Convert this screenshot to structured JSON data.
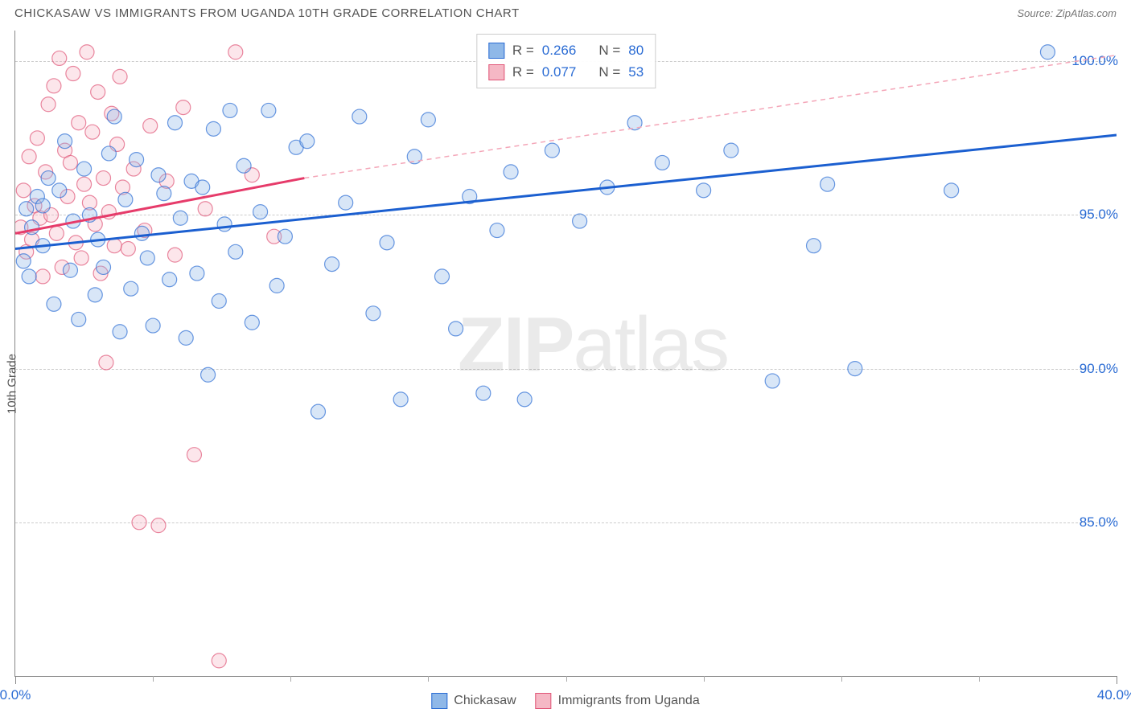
{
  "header": {
    "title": "CHICKASAW VS IMMIGRANTS FROM UGANDA 10TH GRADE CORRELATION CHART",
    "source_prefix": "Source: ",
    "source_name": "ZipAtlas.com"
  },
  "watermark": {
    "zip": "ZIP",
    "atlas": "atlas"
  },
  "axes": {
    "y_title": "10th Grade",
    "x_range": [
      0,
      40
    ],
    "y_range": [
      80,
      101
    ],
    "x_ticks_major": [
      0,
      40
    ],
    "x_ticks_minor": [
      5,
      10,
      15,
      20,
      25,
      30,
      35
    ],
    "x_labels": [
      {
        "v": 0,
        "t": "0.0%"
      },
      {
        "v": 40,
        "t": "40.0%"
      }
    ],
    "y_grid": [
      85,
      90,
      95,
      100
    ],
    "y_labels": [
      {
        "v": 85,
        "t": "85.0%"
      },
      {
        "v": 90,
        "t": "90.0%"
      },
      {
        "v": 95,
        "t": "95.0%"
      },
      {
        "v": 100,
        "t": "100.0%"
      }
    ],
    "grid_color": "#cccccc",
    "axis_color": "#888888"
  },
  "series": {
    "a": {
      "name": "Chickasaw",
      "fill": "#8fb8e8",
      "stroke": "#2b6cd4",
      "r_label": "R =",
      "r_value": "0.266",
      "n_label": "N =",
      "n_value": "80",
      "marker_radius": 9,
      "trend": {
        "x1": 0,
        "y1": 93.9,
        "x2": 40,
        "y2": 97.6,
        "width": 3,
        "color": "#1b5fd0"
      },
      "extrap": null,
      "points": [
        [
          0.3,
          93.5
        ],
        [
          0.4,
          95.2
        ],
        [
          0.5,
          93.0
        ],
        [
          0.6,
          94.6
        ],
        [
          0.8,
          95.6
        ],
        [
          1.0,
          94.0
        ],
        [
          1.0,
          95.3
        ],
        [
          1.2,
          96.2
        ],
        [
          1.4,
          92.1
        ],
        [
          1.6,
          95.8
        ],
        [
          1.8,
          97.4
        ],
        [
          2.0,
          93.2
        ],
        [
          2.1,
          94.8
        ],
        [
          2.3,
          91.6
        ],
        [
          2.5,
          96.5
        ],
        [
          2.7,
          95.0
        ],
        [
          2.9,
          92.4
        ],
        [
          3.0,
          94.2
        ],
        [
          3.2,
          93.3
        ],
        [
          3.4,
          97.0
        ],
        [
          3.6,
          98.2
        ],
        [
          3.8,
          91.2
        ],
        [
          4.0,
          95.5
        ],
        [
          4.2,
          92.6
        ],
        [
          4.4,
          96.8
        ],
        [
          4.6,
          94.4
        ],
        [
          4.8,
          93.6
        ],
        [
          5.0,
          91.4
        ],
        [
          5.2,
          96.3
        ],
        [
          5.4,
          95.7
        ],
        [
          5.6,
          92.9
        ],
        [
          5.8,
          98.0
        ],
        [
          6.0,
          94.9
        ],
        [
          6.2,
          91.0
        ],
        [
          6.4,
          96.1
        ],
        [
          6.6,
          93.1
        ],
        [
          6.8,
          95.9
        ],
        [
          7.0,
          89.8
        ],
        [
          7.2,
          97.8
        ],
        [
          7.4,
          92.2
        ],
        [
          7.6,
          94.7
        ],
        [
          7.8,
          98.4
        ],
        [
          8.0,
          93.8
        ],
        [
          8.3,
          96.6
        ],
        [
          8.6,
          91.5
        ],
        [
          8.9,
          95.1
        ],
        [
          9.2,
          98.4
        ],
        [
          9.5,
          92.7
        ],
        [
          9.8,
          94.3
        ],
        [
          10.2,
          97.2
        ],
        [
          10.6,
          97.4
        ],
        [
          11.0,
          88.6
        ],
        [
          11.5,
          93.4
        ],
        [
          12.0,
          95.4
        ],
        [
          12.5,
          98.2
        ],
        [
          13.0,
          91.8
        ],
        [
          13.5,
          94.1
        ],
        [
          14.0,
          89.0
        ],
        [
          14.5,
          96.9
        ],
        [
          15.0,
          98.1
        ],
        [
          15.5,
          93.0
        ],
        [
          16.0,
          91.3
        ],
        [
          16.5,
          95.6
        ],
        [
          17.0,
          89.2
        ],
        [
          17.5,
          94.5
        ],
        [
          18.0,
          96.4
        ],
        [
          18.5,
          89.0
        ],
        [
          19.5,
          97.1
        ],
        [
          20.5,
          94.8
        ],
        [
          21.5,
          95.9
        ],
        [
          22.5,
          98.0
        ],
        [
          23.5,
          96.7
        ],
        [
          25.0,
          95.8
        ],
        [
          26.0,
          97.1
        ],
        [
          27.5,
          89.6
        ],
        [
          29.0,
          94.0
        ],
        [
          29.5,
          96.0
        ],
        [
          30.5,
          90.0
        ],
        [
          34.0,
          95.8
        ],
        [
          37.5,
          100.3
        ]
      ]
    },
    "b": {
      "name": "Immigrants from Uganda",
      "fill": "#f5b8c5",
      "stroke": "#e05577",
      "r_label": "R =",
      "r_value": "0.077",
      "n_label": "N =",
      "n_value": "53",
      "marker_radius": 9,
      "trend": {
        "x1": 0,
        "y1": 94.4,
        "x2": 10.5,
        "y2": 96.2,
        "width": 3,
        "color": "#e63b6a"
      },
      "extrap": {
        "x1": 10.5,
        "y1": 96.2,
        "x2": 40,
        "y2": 100.2,
        "color": "#f4a6b8",
        "dash": "6,5",
        "width": 1.5
      },
      "points": [
        [
          0.2,
          94.6
        ],
        [
          0.3,
          95.8
        ],
        [
          0.4,
          93.8
        ],
        [
          0.5,
          96.9
        ],
        [
          0.6,
          94.2
        ],
        [
          0.7,
          95.3
        ],
        [
          0.8,
          97.5
        ],
        [
          0.9,
          94.9
        ],
        [
          1.0,
          93.0
        ],
        [
          1.1,
          96.4
        ],
        [
          1.2,
          98.6
        ],
        [
          1.3,
          95.0
        ],
        [
          1.4,
          99.2
        ],
        [
          1.5,
          94.4
        ],
        [
          1.6,
          100.1
        ],
        [
          1.7,
          93.3
        ],
        [
          1.8,
          97.1
        ],
        [
          1.9,
          95.6
        ],
        [
          2.0,
          96.7
        ],
        [
          2.1,
          99.6
        ],
        [
          2.2,
          94.1
        ],
        [
          2.3,
          98.0
        ],
        [
          2.4,
          93.6
        ],
        [
          2.5,
          96.0
        ],
        [
          2.6,
          100.3
        ],
        [
          2.7,
          95.4
        ],
        [
          2.8,
          97.7
        ],
        [
          2.9,
          94.7
        ],
        [
          3.0,
          99.0
        ],
        [
          3.1,
          93.1
        ],
        [
          3.2,
          96.2
        ],
        [
          3.3,
          90.2
        ],
        [
          3.4,
          95.1
        ],
        [
          3.5,
          98.3
        ],
        [
          3.6,
          94.0
        ],
        [
          3.7,
          97.3
        ],
        [
          3.8,
          99.5
        ],
        [
          3.9,
          95.9
        ],
        [
          4.1,
          93.9
        ],
        [
          4.3,
          96.5
        ],
        [
          4.5,
          85.0
        ],
        [
          4.7,
          94.5
        ],
        [
          4.9,
          97.9
        ],
        [
          5.2,
          84.9
        ],
        [
          5.5,
          96.1
        ],
        [
          5.8,
          93.7
        ],
        [
          6.1,
          98.5
        ],
        [
          6.5,
          87.2
        ],
        [
          6.9,
          95.2
        ],
        [
          7.4,
          80.5
        ],
        [
          8.0,
          100.3
        ],
        [
          8.6,
          96.3
        ],
        [
          9.4,
          94.3
        ]
      ]
    }
  },
  "colors": {
    "text_axis": "#555555",
    "tick_label": "#2b6cd4",
    "background": "#ffffff"
  }
}
